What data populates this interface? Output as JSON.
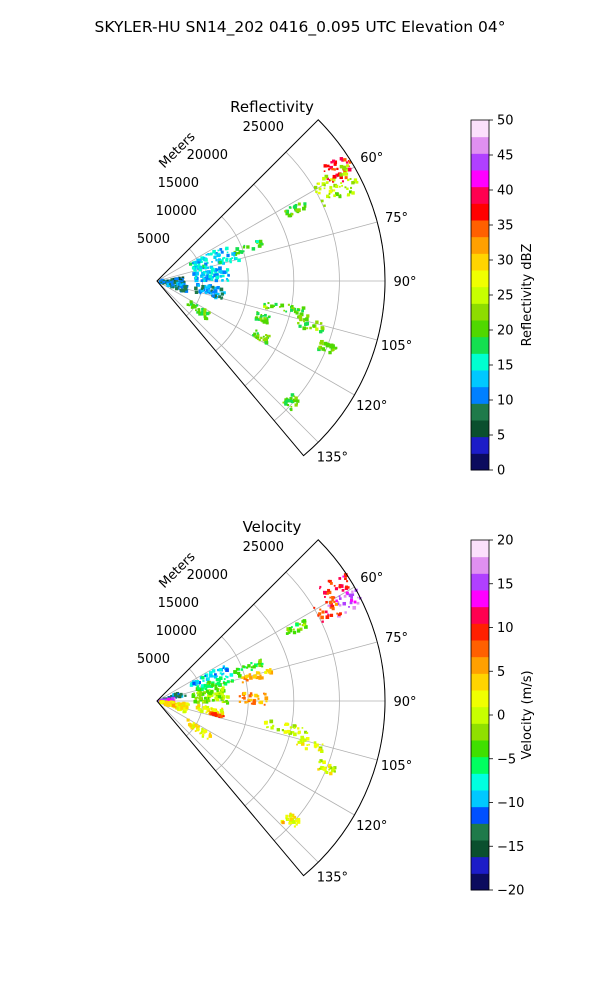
{
  "suptitle": "SKYLER-HU  SN14_202  0416_0.095 UTC Elevation 04°",
  "colors": {
    "reflectivity_stops": [
      "#0b0b5e",
      "#1c1cc8",
      "#0a4f2e",
      "#1f7a4a",
      "#0080ff",
      "#00c8ff",
      "#00ffd0",
      "#14e050",
      "#50d800",
      "#8edc00",
      "#c8ff00",
      "#f0ff00",
      "#ffd400",
      "#ffa000",
      "#ff6000",
      "#ff0000",
      "#ff0050",
      "#ff00ff",
      "#b040ff",
      "#e090f0",
      "#fce0fc"
    ],
    "velocity_stops": [
      "#0b0b5e",
      "#1c1cc8",
      "#0a4f2e",
      "#1f7a4a",
      "#0050ff",
      "#00c8ff",
      "#00ffe0",
      "#00ff60",
      "#40e000",
      "#90e000",
      "#c8ff00",
      "#f0ff00",
      "#ffd400",
      "#ffa000",
      "#ff6000",
      "#ff2000",
      "#ff0050",
      "#ff00ff",
      "#b040ff",
      "#e090f0",
      "#fce0fc"
    ]
  },
  "chart_data": [
    {
      "type": "heatmap",
      "title": "Reflectivity",
      "projection": "polar sector",
      "azimuth_range_deg": [
        45,
        140
      ],
      "range_max_m": 25000,
      "radial_label": "Meters",
      "radial_ticks": [
        "5000",
        "10000",
        "15000",
        "20000",
        "25000"
      ],
      "radial_tick_values": [
        5000,
        10000,
        15000,
        20000,
        25000
      ],
      "azimuth_ticks": [
        "60°",
        "75°",
        "90°",
        "105°",
        "120°",
        "135°"
      ],
      "azimuth_tick_values": [
        60,
        75,
        90,
        105,
        120,
        135
      ],
      "grid": true,
      "colorbar": {
        "label": "Reflectivity dBZ",
        "range": [
          0,
          50
        ],
        "ticks": [
          "0",
          "5",
          "10",
          "15",
          "20",
          "25",
          "30",
          "35",
          "40",
          "45",
          "50"
        ],
        "tick_values": [
          0,
          5,
          10,
          15,
          20,
          25,
          30,
          35,
          40,
          45,
          50
        ]
      },
      "echo_regions": [
        {
          "az": [
            55,
            62
          ],
          "r_m": [
            21500,
            25000
          ],
          "value": 37
        },
        {
          "az": [
            58,
            66
          ],
          "r_m": [
            20000,
            24500
          ],
          "value": 24
        },
        {
          "az": [
            61,
            64
          ],
          "r_m": [
            16000,
            18500
          ],
          "value": 20
        },
        {
          "az": [
            68,
            72
          ],
          "r_m": [
            9000,
            12500
          ],
          "value": 19
        },
        {
          "az": [
            62,
            68
          ],
          "r_m": [
            4000,
            8500
          ],
          "value": 14
        },
        {
          "az": [
            70,
            76
          ],
          "r_m": [
            4000,
            9500
          ],
          "value": 14
        },
        {
          "az": [
            78,
            90
          ],
          "r_m": [
            4000,
            8000
          ],
          "value": 13
        },
        {
          "az": [
            82,
            96
          ],
          "r_m": [
            500,
            3000
          ],
          "value": 9
        },
        {
          "az": [
            94,
            112
          ],
          "r_m": [
            400,
            3500
          ],
          "value": 10
        },
        {
          "az": [
            95,
            106
          ],
          "r_m": [
            4200,
            7500
          ],
          "value": 11
        },
        {
          "az": [
            100,
            104
          ],
          "r_m": [
            12000,
            17000
          ],
          "value": 21
        },
        {
          "az": [
            104,
            108
          ],
          "r_m": [
            16000,
            19000
          ],
          "value": 21
        },
        {
          "az": [
            107,
            111
          ],
          "r_m": [
            11500,
            13000
          ],
          "value": 20
        },
        {
          "az": [
            110,
            113
          ],
          "r_m": [
            19000,
            21000
          ],
          "value": 20
        },
        {
          "az": [
            116,
            120
          ],
          "r_m": [
            12000,
            14000
          ],
          "value": 20
        },
        {
          "az": [
            121,
            128
          ],
          "r_m": [
            4000,
            7000
          ],
          "value": 20
        },
        {
          "az": [
            130,
            134
          ],
          "r_m": [
            19000,
            20500
          ],
          "value": 20
        }
      ]
    },
    {
      "type": "heatmap",
      "title": "Velocity",
      "projection": "polar sector",
      "azimuth_range_deg": [
        45,
        140
      ],
      "range_max_m": 25000,
      "radial_label": "Meters",
      "radial_ticks": [
        "5000",
        "10000",
        "15000",
        "20000",
        "25000"
      ],
      "radial_tick_values": [
        5000,
        10000,
        15000,
        20000,
        25000
      ],
      "azimuth_ticks": [
        "60°",
        "75°",
        "90°",
        "105°",
        "120°",
        "135°"
      ],
      "azimuth_tick_values": [
        60,
        75,
        90,
        105,
        120,
        135
      ],
      "grid": true,
      "colorbar": {
        "label": "Velocity (m/s)",
        "range": [
          -20,
          20
        ],
        "ticks": [
          "−20",
          "−15",
          "−10",
          "−5",
          "0",
          "5",
          "10",
          "15",
          "20"
        ],
        "tick_values": [
          -20,
          -15,
          -10,
          -5,
          0,
          5,
          10,
          15,
          20
        ]
      },
      "echo_regions": [
        {
          "az": [
            55,
            60
          ],
          "r_m": [
            21500,
            25000
          ],
          "value": 10
        },
        {
          "az": [
            60,
            65
          ],
          "r_m": [
            21000,
            25000
          ],
          "value": 16
        },
        {
          "az": [
            59,
            65
          ],
          "r_m": [
            20000,
            22500
          ],
          "value": 9
        },
        {
          "az": [
            61,
            64
          ],
          "r_m": [
            16000,
            18500
          ],
          "value": -3
        },
        {
          "az": [
            68,
            72
          ],
          "r_m": [
            9000,
            12500
          ],
          "value": -4
        },
        {
          "az": [
            62,
            68
          ],
          "r_m": [
            4000,
            8500
          ],
          "value": -9
        },
        {
          "az": [
            70,
            76
          ],
          "r_m": [
            4500,
            9500
          ],
          "value": -5
        },
        {
          "az": [
            74,
            78
          ],
          "r_m": [
            9500,
            13000
          ],
          "value": 5
        },
        {
          "az": [
            78,
            92
          ],
          "r_m": [
            4000,
            8000
          ],
          "value": -2
        },
        {
          "az": [
            85,
            92
          ],
          "r_m": [
            9000,
            12000
          ],
          "value": 6
        },
        {
          "az": [
            70,
            80
          ],
          "r_m": [
            800,
            3200
          ],
          "value": -12
        },
        {
          "az": [
            80,
            90
          ],
          "r_m": [
            300,
            2000
          ],
          "value": 15
        },
        {
          "az": [
            94,
            112
          ],
          "r_m": [
            400,
            3500
          ],
          "value": 3
        },
        {
          "az": [
            96,
            104
          ],
          "r_m": [
            4500,
            7500
          ],
          "value": 2
        },
        {
          "az": [
            102,
            104
          ],
          "r_m": [
            6000,
            7500
          ],
          "value": 9
        },
        {
          "az": [
            100,
            104
          ],
          "r_m": [
            12000,
            17000
          ],
          "value": 1
        },
        {
          "az": [
            104,
            108
          ],
          "r_m": [
            16000,
            19000
          ],
          "value": 1
        },
        {
          "az": [
            110,
            113
          ],
          "r_m": [
            19000,
            21000
          ],
          "value": 1
        },
        {
          "az": [
            121,
            128
          ],
          "r_m": [
            4000,
            7000
          ],
          "value": 2
        },
        {
          "az": [
            130,
            134
          ],
          "r_m": [
            19000,
            20500
          ],
          "value": 3
        }
      ]
    }
  ]
}
